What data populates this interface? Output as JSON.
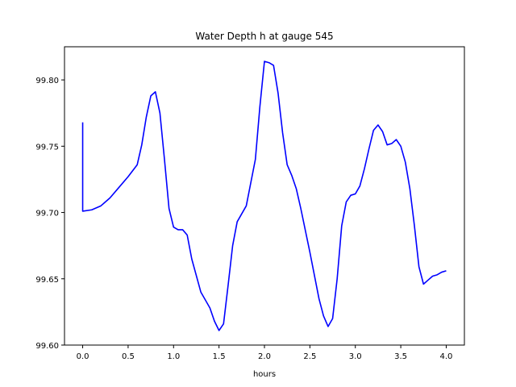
{
  "chart_data": {
    "type": "line",
    "title": "Water Depth h at gauge 545",
    "xlabel": "hours",
    "ylabel": "",
    "xlim": [
      -0.2,
      4.2
    ],
    "ylim": [
      99.6,
      99.825
    ],
    "xticks": [
      0.0,
      0.5,
      1.0,
      1.5,
      2.0,
      2.5,
      3.0,
      3.5,
      4.0
    ],
    "xtick_labels": [
      "0.0",
      "0.5",
      "1.0",
      "1.5",
      "2.0",
      "2.5",
      "3.0",
      "3.5",
      "4.0"
    ],
    "yticks": [
      99.6,
      99.65,
      99.7,
      99.75,
      99.8
    ],
    "ytick_labels": [
      "99.60",
      "99.65",
      "99.70",
      "99.75",
      "99.80"
    ],
    "grid": false,
    "series": [
      {
        "color": "#0000ff",
        "x": [
          0.0,
          0.0,
          0.0,
          0.1,
          0.2,
          0.3,
          0.4,
          0.5,
          0.6,
          0.65,
          0.7,
          0.75,
          0.8,
          0.85,
          0.9,
          0.95,
          1.0,
          1.05,
          1.1,
          1.15,
          1.2,
          1.3,
          1.4,
          1.45,
          1.5,
          1.55,
          1.6,
          1.65,
          1.7,
          1.8,
          1.9,
          1.95,
          2.0,
          2.05,
          2.1,
          2.15,
          2.2,
          2.25,
          2.3,
          2.35,
          2.4,
          2.5,
          2.6,
          2.65,
          2.7,
          2.75,
          2.8,
          2.85,
          2.9,
          2.95,
          3.0,
          3.05,
          3.1,
          3.15,
          3.2,
          3.25,
          3.3,
          3.35,
          3.4,
          3.45,
          3.5,
          3.55,
          3.6,
          3.65,
          3.7,
          3.75,
          3.8,
          3.85,
          3.9,
          3.95,
          4.0
        ],
        "y": [
          99.768,
          99.702,
          99.701,
          99.702,
          99.705,
          99.711,
          99.719,
          99.727,
          99.736,
          99.751,
          99.772,
          99.788,
          99.791,
          99.775,
          99.74,
          99.703,
          99.689,
          99.687,
          99.687,
          99.683,
          99.665,
          99.64,
          99.628,
          99.618,
          99.611,
          99.616,
          99.645,
          99.675,
          99.693,
          99.705,
          99.74,
          99.78,
          99.814,
          99.813,
          99.811,
          99.79,
          99.76,
          99.736,
          99.728,
          99.718,
          99.703,
          99.67,
          99.635,
          99.622,
          99.614,
          99.62,
          99.65,
          99.69,
          99.708,
          99.713,
          99.714,
          99.72,
          99.733,
          99.748,
          99.762,
          99.766,
          99.761,
          99.751,
          99.752,
          99.755,
          99.75,
          99.738,
          99.718,
          99.69,
          99.659,
          99.646,
          99.649,
          99.652,
          99.653,
          99.655,
          99.656
        ]
      }
    ]
  }
}
